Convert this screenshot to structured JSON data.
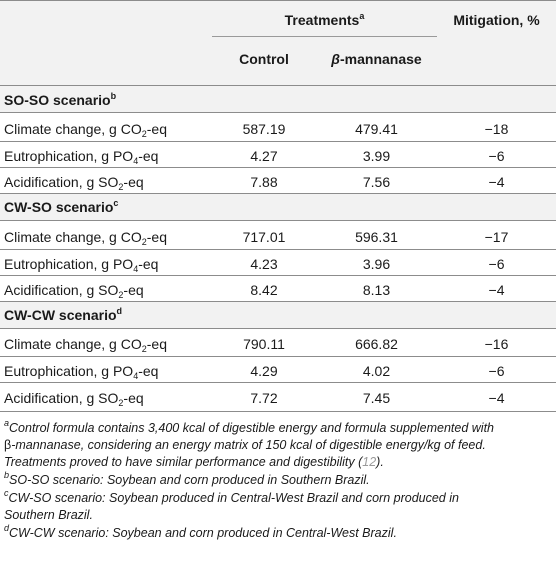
{
  "header": {
    "treatments": "Treatments",
    "treatments_sup": "a",
    "mitigation": "Mitigation, %",
    "control": "Control",
    "beta": "β",
    "mannanase": "-mannanase"
  },
  "sections": [
    {
      "title": "SO-SO scenario",
      "title_sup": "b",
      "rows": [
        {
          "label_pre": "Climate change, g CO",
          "label_sub": "2",
          "label_post": "-eq",
          "control": "587.19",
          "treatment": "479.41",
          "mitigation": "−18"
        },
        {
          "label_pre": "Eutrophication, g PO",
          "label_sub": "4",
          "label_post": "-eq",
          "control": "4.27",
          "treatment": "3.99",
          "mitigation": "−6"
        },
        {
          "label_pre": "Acidification, g SO",
          "label_sub": "2",
          "label_post": "-eq",
          "control": "7.88",
          "treatment": "7.56",
          "mitigation": "−4"
        }
      ]
    },
    {
      "title": "CW-SO scenario",
      "title_sup": "c",
      "rows": [
        {
          "label_pre": "Climate change, g CO",
          "label_sub": "2",
          "label_post": "-eq",
          "control": "717.01",
          "treatment": "596.31",
          "mitigation": "−17"
        },
        {
          "label_pre": "Eutrophication, g PO",
          "label_sub": "4",
          "label_post": "-eq",
          "control": "4.23",
          "treatment": "3.96",
          "mitigation": "−6"
        },
        {
          "label_pre": "Acidification, g SO",
          "label_sub": "2",
          "label_post": "-eq",
          "control": "8.42",
          "treatment": "8.13",
          "mitigation": "−4"
        }
      ]
    },
    {
      "title": "CW-CW scenario",
      "title_sup": "d",
      "rows": [
        {
          "label_pre": "Climate change, g CO",
          "label_sub": "2",
          "label_post": "-eq",
          "control": "790.11",
          "treatment": "666.82",
          "mitigation": "−16"
        },
        {
          "label_pre": "Eutrophication, g PO",
          "label_sub": "4",
          "label_post": "-eq",
          "control": "4.29",
          "treatment": "4.02",
          "mitigation": "−6"
        },
        {
          "label_pre": "Acidification, g SO",
          "label_sub": "2",
          "label_post": "-eq",
          "control": "7.72",
          "treatment": "7.45",
          "mitigation": "−4"
        }
      ]
    }
  ],
  "footnotes": {
    "a": {
      "mark": "a",
      "line1": "Control formula contains 3,400 kcal of digestible energy and formula supplemented with",
      "line2_beta": "β",
      "line2": "-mannanase, considering an energy matrix of 150 kcal of digestible energy/kg of feed.",
      "line3": "Treatments proved to have similar performance and digestibility (",
      "ref": "12",
      "line3_end": ")."
    },
    "b": {
      "mark": "b",
      "text": "SO-SO scenario: Soybean and corn produced in Southern Brazil."
    },
    "c": {
      "mark": "c",
      "line1": "CW-SO scenario: Soybean produced in Central-West Brazil and corn produced in",
      "line2": "Southern Brazil."
    },
    "d": {
      "mark": "d",
      "text": "CW-CW scenario: Soybean and corn produced in Central-West Brazil."
    }
  }
}
